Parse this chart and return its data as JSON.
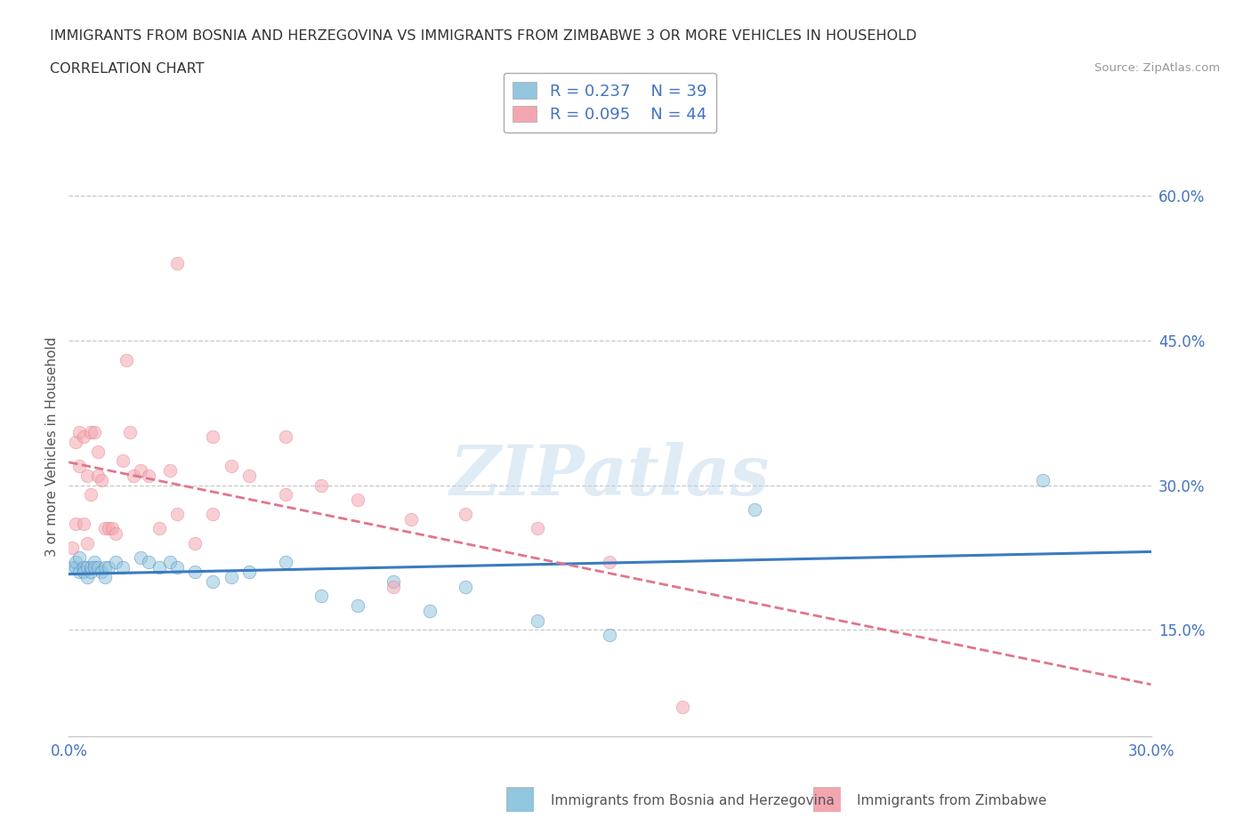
{
  "title_line1": "IMMIGRANTS FROM BOSNIA AND HERZEGOVINA VS IMMIGRANTS FROM ZIMBABWE 3 OR MORE VEHICLES IN HOUSEHOLD",
  "title_line2": "CORRELATION CHART",
  "source_text": "Source: ZipAtlas.com",
  "ylabel": "3 or more Vehicles in Household",
  "xlim": [
    0.0,
    0.3
  ],
  "ylim": [
    0.04,
    0.64
  ],
  "xticks": [
    0.0,
    0.05,
    0.1,
    0.15,
    0.2,
    0.25,
    0.3
  ],
  "xticklabels": [
    "0.0%",
    "",
    "",
    "",
    "",
    "",
    "30.0%"
  ],
  "yticks": [
    0.15,
    0.3,
    0.45,
    0.6
  ],
  "yticklabels": [
    "15.0%",
    "30.0%",
    "45.0%",
    "60.0%"
  ],
  "legend_r1": "R = 0.237",
  "legend_n1": "N = 39",
  "legend_r2": "R = 0.095",
  "legend_n2": "N = 44",
  "color_bosnia": "#92c5de",
  "color_zimbabwe": "#f4a6b0",
  "color_bosnia_line": "#3b7bbf",
  "color_zimbabwe_line": "#e0768a",
  "watermark_text": "ZIPatlas",
  "bosnia_x": [
    0.001,
    0.002,
    0.002,
    0.003,
    0.003,
    0.004,
    0.004,
    0.005,
    0.005,
    0.006,
    0.006,
    0.007,
    0.007,
    0.008,
    0.009,
    0.01,
    0.01,
    0.011,
    0.013,
    0.015,
    0.02,
    0.022,
    0.025,
    0.028,
    0.03,
    0.035,
    0.04,
    0.045,
    0.05,
    0.06,
    0.07,
    0.08,
    0.09,
    0.1,
    0.11,
    0.13,
    0.15,
    0.19,
    0.27
  ],
  "bosnia_y": [
    0.215,
    0.215,
    0.22,
    0.21,
    0.225,
    0.215,
    0.21,
    0.205,
    0.215,
    0.21,
    0.215,
    0.22,
    0.215,
    0.215,
    0.21,
    0.215,
    0.205,
    0.215,
    0.22,
    0.215,
    0.225,
    0.22,
    0.215,
    0.22,
    0.215,
    0.21,
    0.2,
    0.205,
    0.21,
    0.22,
    0.185,
    0.175,
    0.2,
    0.17,
    0.195,
    0.16,
    0.145,
    0.275,
    0.305
  ],
  "zimbabwe_x": [
    0.001,
    0.002,
    0.002,
    0.003,
    0.003,
    0.004,
    0.004,
    0.005,
    0.005,
    0.006,
    0.006,
    0.007,
    0.008,
    0.008,
    0.009,
    0.01,
    0.011,
    0.012,
    0.013,
    0.015,
    0.016,
    0.017,
    0.018,
    0.02,
    0.022,
    0.025,
    0.028,
    0.03,
    0.035,
    0.04,
    0.045,
    0.05,
    0.06,
    0.07,
    0.08,
    0.095,
    0.11,
    0.13,
    0.15,
    0.03,
    0.04,
    0.06,
    0.09,
    0.17
  ],
  "zimbabwe_y": [
    0.235,
    0.26,
    0.345,
    0.355,
    0.32,
    0.26,
    0.35,
    0.31,
    0.24,
    0.29,
    0.355,
    0.355,
    0.31,
    0.335,
    0.305,
    0.255,
    0.255,
    0.255,
    0.25,
    0.325,
    0.43,
    0.355,
    0.31,
    0.315,
    0.31,
    0.255,
    0.315,
    0.27,
    0.24,
    0.27,
    0.32,
    0.31,
    0.35,
    0.3,
    0.285,
    0.265,
    0.27,
    0.255,
    0.22,
    0.53,
    0.35,
    0.29,
    0.195,
    0.07
  ]
}
